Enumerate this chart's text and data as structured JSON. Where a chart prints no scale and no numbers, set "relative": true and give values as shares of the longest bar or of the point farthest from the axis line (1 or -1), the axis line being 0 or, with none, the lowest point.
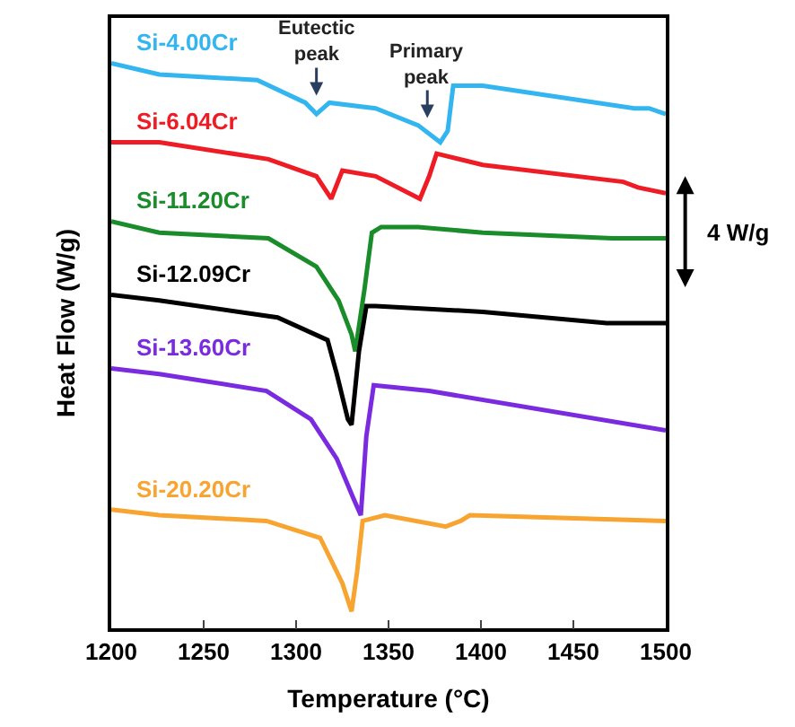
{
  "chart_data": {
    "type": "line",
    "relative": true,
    "xlabel": "Temperature (°C)",
    "ylabel": "Heat Flow (W/g)",
    "xlim": [
      1200,
      1500
    ],
    "xticks": [
      1200,
      1250,
      1300,
      1350,
      1400,
      1450,
      1500
    ],
    "legend": false,
    "annotations": [
      {
        "text": "Eutectic\npeak",
        "x": 1311,
        "y": 0.93
      },
      {
        "text": "Primary\npeak",
        "x": 1371,
        "y": 0.89
      },
      "4 W/g"
    ],
    "series": [
      {
        "name": "Si-4.00Cr",
        "color": "#33b5f0",
        "x": [
          1200,
          1226,
          1279,
          1305,
          1311,
          1318,
          1343,
          1366,
          1378,
          1382,
          1385,
          1401,
          1483,
          1491,
          1500
        ],
        "values": [
          1.0,
          0.98,
          0.97,
          0.93,
          0.91,
          0.93,
          0.92,
          0.89,
          0.86,
          0.88,
          0.96,
          0.96,
          0.92,
          0.92,
          0.91
        ]
      },
      {
        "name": "Si-6.04Cr",
        "color": "#ee1c24",
        "x": [
          1200,
          1226,
          1285,
          1311,
          1319,
          1325,
          1343,
          1367,
          1372,
          1376,
          1401,
          1477,
          1485,
          1500
        ],
        "values": [
          0.86,
          0.86,
          0.83,
          0.8,
          0.76,
          0.81,
          0.8,
          0.76,
          0.8,
          0.84,
          0.82,
          0.79,
          0.78,
          0.77
        ]
      },
      {
        "name": "Si-11.20Cr",
        "color": "#1a8c2a",
        "x": [
          1200,
          1226,
          1285,
          1311,
          1323,
          1330,
          1332,
          1337,
          1341,
          1346,
          1366,
          1401,
          1471,
          1500
        ],
        "values": [
          0.72,
          0.7,
          0.69,
          0.64,
          0.58,
          0.52,
          0.49,
          0.6,
          0.7,
          0.71,
          0.71,
          0.7,
          0.69,
          0.69
        ]
      },
      {
        "name": "Si-12.09Cr",
        "color": "#000000",
        "x": [
          1200,
          1226,
          1290,
          1317,
          1322,
          1328,
          1330,
          1334,
          1338,
          1343,
          1401,
          1468,
          1480,
          1500
        ],
        "values": [
          0.59,
          0.58,
          0.55,
          0.51,
          0.45,
          0.37,
          0.36,
          0.49,
          0.57,
          0.57,
          0.56,
          0.54,
          0.54,
          0.54
        ]
      },
      {
        "name": "Si-13.60Cr",
        "color": "#7a2be0",
        "x": [
          1200,
          1226,
          1284,
          1308,
          1322,
          1331,
          1335,
          1338,
          1342,
          1372,
          1500
        ],
        "values": [
          0.46,
          0.45,
          0.42,
          0.37,
          0.3,
          0.23,
          0.2,
          0.34,
          0.43,
          0.42,
          0.35
        ]
      },
      {
        "name": "Si-20.20Cr",
        "color": "#f7a430",
        "x": [
          1200,
          1226,
          1284,
          1313,
          1325,
          1330,
          1333,
          1336,
          1348,
          1381,
          1389,
          1394,
          1500
        ],
        "values": [
          0.21,
          0.2,
          0.19,
          0.16,
          0.08,
          0.03,
          0.1,
          0.19,
          0.2,
          0.18,
          0.19,
          0.2,
          0.19
        ]
      }
    ]
  }
}
